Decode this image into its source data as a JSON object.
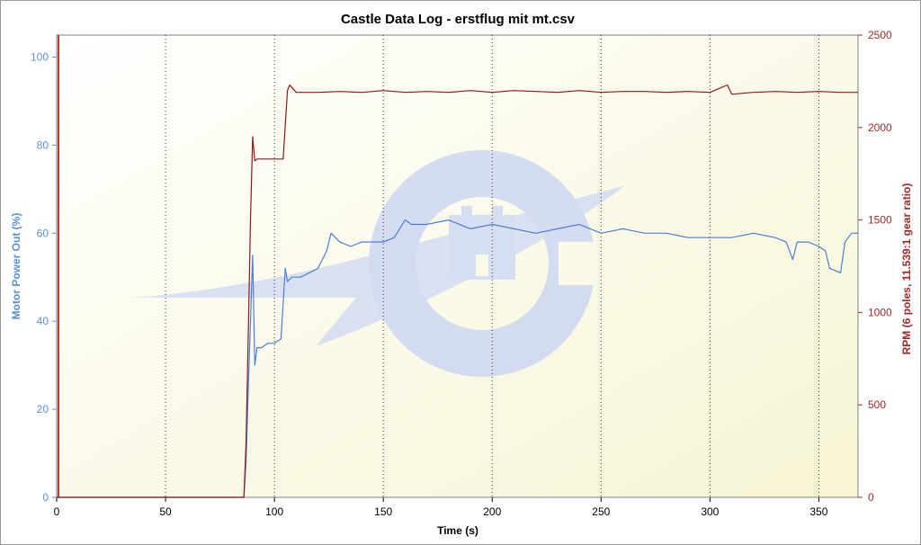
{
  "chart_data": {
    "type": "line",
    "title": "Castle Data Log - erstflug mit mt.csv",
    "xlabel": "Time (s)",
    "ylabel_left": "Motor Power Out (%)",
    "ylabel_right": "RPM (6 poles, 11.539:1 gear ratio)",
    "xlim": [
      0,
      368
    ],
    "ylim_left": [
      0,
      105
    ],
    "ylim_right": [
      0,
      2500
    ],
    "x_ticks": [
      0,
      50,
      100,
      150,
      200,
      250,
      300,
      350
    ],
    "y_left_ticks": [
      0,
      20,
      40,
      60,
      80,
      100
    ],
    "y_right_ticks": [
      0,
      500,
      1000,
      1500,
      2000,
      2500
    ],
    "grid": "vertical dotted",
    "watermark": "castle-logo",
    "series": [
      {
        "axis": "left",
        "color": "#4a7fd6",
        "x": [
          0,
          86,
          87,
          88,
          89,
          90,
          91,
          92,
          94,
          97,
          100,
          103,
          105,
          106,
          108,
          112,
          116,
          120,
          124,
          126,
          130,
          135,
          140,
          145,
          150,
          155,
          160,
          163,
          170,
          180,
          190,
          200,
          210,
          220,
          230,
          240,
          250,
          260,
          270,
          280,
          290,
          300,
          310,
          320,
          330,
          335,
          338,
          340,
          345,
          350,
          353,
          355,
          360,
          362,
          365,
          368
        ],
        "values": [
          0,
          0,
          8,
          25,
          40,
          55,
          30,
          34,
          34,
          35,
          35,
          36,
          52,
          49,
          50,
          50,
          51,
          52,
          56,
          60,
          58,
          57,
          58,
          58,
          58,
          59,
          63,
          62,
          62,
          63,
          61,
          62,
          61,
          60,
          61,
          62,
          60,
          61,
          60,
          60,
          59,
          59,
          59,
          60,
          59,
          58,
          54,
          58,
          58,
          57,
          56,
          52,
          51,
          58,
          60,
          60
        ]
      },
      {
        "axis": "right",
        "color": "#8b1a1a",
        "x": [
          0,
          86,
          87,
          88,
          89,
          90,
          91,
          92,
          95,
          100,
          104,
          106,
          107,
          110,
          120,
          130,
          140,
          150,
          160,
          170,
          180,
          190,
          200,
          210,
          220,
          230,
          240,
          250,
          260,
          270,
          280,
          290,
          300,
          308,
          310,
          320,
          330,
          340,
          350,
          360,
          368
        ],
        "values": [
          0,
          0,
          300,
          900,
          1500,
          1950,
          1820,
          1830,
          1830,
          1830,
          1830,
          2200,
          2230,
          2190,
          2190,
          2195,
          2190,
          2200,
          2190,
          2195,
          2190,
          2200,
          2190,
          2200,
          2195,
          2190,
          2200,
          2190,
          2195,
          2195,
          2190,
          2195,
          2190,
          2230,
          2180,
          2190,
          2195,
          2190,
          2195,
          2190,
          2190
        ]
      }
    ]
  }
}
